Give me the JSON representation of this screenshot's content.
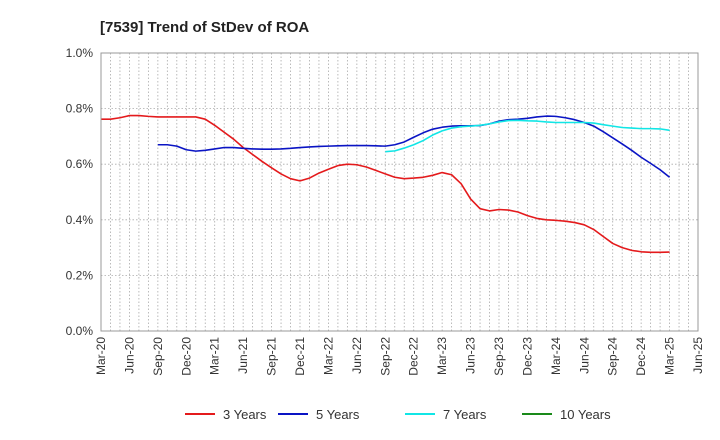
{
  "chart_data": {
    "type": "line",
    "title": "[7539]  Trend of StDev of ROA",
    "xlabel": "",
    "ylabel": "",
    "x_ticks": [
      "Mar-20",
      "Jun-20",
      "Sep-20",
      "Dec-20",
      "Mar-21",
      "Jun-21",
      "Sep-21",
      "Dec-21",
      "Mar-22",
      "Jun-22",
      "Sep-22",
      "Dec-22",
      "Mar-23",
      "Jun-23",
      "Sep-23",
      "Dec-23",
      "Mar-24",
      "Jun-24",
      "Sep-24",
      "Dec-24",
      "Mar-25",
      "Jun-25"
    ],
    "y_ticks": [
      "0.0%",
      "0.2%",
      "0.4%",
      "0.6%",
      "0.8%",
      "1.0%"
    ],
    "ylim": [
      0,
      1.0
    ],
    "y_unit": "%",
    "grid": true,
    "legend_position": "bottom",
    "series": [
      {
        "name": "3 Years",
        "color": "#e41a1c",
        "points": [
          [
            "Mar-20",
            0.762
          ],
          [
            "Apr-20",
            0.762
          ],
          [
            "May-20",
            0.767
          ],
          [
            "Jun-20",
            0.775
          ],
          [
            "Jul-20",
            0.775
          ],
          [
            "Aug-20",
            0.772
          ],
          [
            "Sep-20",
            0.77
          ],
          [
            "Oct-20",
            0.77
          ],
          [
            "Nov-20",
            0.77
          ],
          [
            "Dec-20",
            0.77
          ],
          [
            "Jan-21",
            0.77
          ],
          [
            "Feb-21",
            0.762
          ],
          [
            "Mar-21",
            0.74
          ],
          [
            "Apr-21",
            0.715
          ],
          [
            "May-21",
            0.69
          ],
          [
            "Jun-21",
            0.66
          ],
          [
            "Jul-21",
            0.635
          ],
          [
            "Aug-21",
            0.61
          ],
          [
            "Sep-21",
            0.587
          ],
          [
            "Oct-21",
            0.565
          ],
          [
            "Nov-21",
            0.548
          ],
          [
            "Dec-21",
            0.54
          ],
          [
            "Jan-22",
            0.55
          ],
          [
            "Feb-22",
            0.568
          ],
          [
            "Mar-22",
            0.582
          ],
          [
            "Apr-22",
            0.595
          ],
          [
            "May-22",
            0.6
          ],
          [
            "Jun-22",
            0.598
          ],
          [
            "Jul-22",
            0.59
          ],
          [
            "Aug-22",
            0.578
          ],
          [
            "Sep-22",
            0.565
          ],
          [
            "Oct-22",
            0.553
          ],
          [
            "Nov-22",
            0.548
          ],
          [
            "Dec-22",
            0.55
          ],
          [
            "Jan-23",
            0.553
          ],
          [
            "Feb-23",
            0.56
          ],
          [
            "Mar-23",
            0.57
          ],
          [
            "Apr-23",
            0.562
          ],
          [
            "May-23",
            0.53
          ],
          [
            "Jun-23",
            0.475
          ],
          [
            "Jul-23",
            0.44
          ],
          [
            "Aug-23",
            0.432
          ],
          [
            "Sep-23",
            0.437
          ],
          [
            "Oct-23",
            0.435
          ],
          [
            "Nov-23",
            0.428
          ],
          [
            "Dec-23",
            0.415
          ],
          [
            "Jan-24",
            0.405
          ],
          [
            "Feb-24",
            0.4
          ],
          [
            "Mar-24",
            0.398
          ],
          [
            "Apr-24",
            0.395
          ],
          [
            "May-24",
            0.39
          ],
          [
            "Jun-24",
            0.382
          ],
          [
            "Jul-24",
            0.365
          ],
          [
            "Aug-24",
            0.34
          ],
          [
            "Sep-24",
            0.315
          ],
          [
            "Oct-24",
            0.3
          ],
          [
            "Nov-24",
            0.29
          ],
          [
            "Dec-24",
            0.285
          ],
          [
            "Jan-25",
            0.283
          ],
          [
            "Feb-25",
            0.283
          ],
          [
            "Mar-25",
            0.284
          ]
        ]
      },
      {
        "name": "5 Years",
        "color": "#0a14c4",
        "points": [
          [
            "Sep-20",
            0.67
          ],
          [
            "Oct-20",
            0.67
          ],
          [
            "Nov-20",
            0.665
          ],
          [
            "Dec-20",
            0.652
          ],
          [
            "Jan-21",
            0.647
          ],
          [
            "Feb-21",
            0.65
          ],
          [
            "Mar-21",
            0.655
          ],
          [
            "Apr-21",
            0.66
          ],
          [
            "May-21",
            0.66
          ],
          [
            "Jun-21",
            0.657
          ],
          [
            "Jul-21",
            0.655
          ],
          [
            "Aug-21",
            0.654
          ],
          [
            "Sep-21",
            0.654
          ],
          [
            "Oct-21",
            0.655
          ],
          [
            "Nov-21",
            0.657
          ],
          [
            "Dec-21",
            0.66
          ],
          [
            "Jan-22",
            0.662
          ],
          [
            "Feb-22",
            0.664
          ],
          [
            "Mar-22",
            0.665
          ],
          [
            "Apr-22",
            0.666
          ],
          [
            "May-22",
            0.667
          ],
          [
            "Jun-22",
            0.667
          ],
          [
            "Jul-22",
            0.667
          ],
          [
            "Aug-22",
            0.666
          ],
          [
            "Sep-22",
            0.665
          ],
          [
            "Oct-22",
            0.67
          ],
          [
            "Nov-22",
            0.68
          ],
          [
            "Dec-22",
            0.697
          ],
          [
            "Jan-23",
            0.713
          ],
          [
            "Feb-23",
            0.726
          ],
          [
            "Mar-23",
            0.733
          ],
          [
            "Apr-23",
            0.737
          ],
          [
            "May-23",
            0.738
          ],
          [
            "Jun-23",
            0.738
          ],
          [
            "Jul-23",
            0.739
          ],
          [
            "Aug-23",
            0.745
          ],
          [
            "Sep-23",
            0.755
          ],
          [
            "Oct-23",
            0.76
          ],
          [
            "Nov-23",
            0.762
          ],
          [
            "Dec-23",
            0.765
          ],
          [
            "Jan-24",
            0.77
          ],
          [
            "Feb-24",
            0.773
          ],
          [
            "Mar-24",
            0.772
          ],
          [
            "Apr-24",
            0.767
          ],
          [
            "May-24",
            0.76
          ],
          [
            "Jun-24",
            0.75
          ],
          [
            "Jul-24",
            0.737
          ],
          [
            "Aug-24",
            0.717
          ],
          [
            "Sep-24",
            0.695
          ],
          [
            "Oct-24",
            0.673
          ],
          [
            "Nov-24",
            0.65
          ],
          [
            "Dec-24",
            0.625
          ],
          [
            "Jan-25",
            0.603
          ],
          [
            "Feb-25",
            0.58
          ],
          [
            "Mar-25",
            0.553
          ]
        ]
      },
      {
        "name": "7 Years",
        "color": "#11e6e6",
        "points": [
          [
            "Sep-22",
            0.645
          ],
          [
            "Oct-22",
            0.648
          ],
          [
            "Nov-22",
            0.658
          ],
          [
            "Dec-22",
            0.67
          ],
          [
            "Jan-23",
            0.685
          ],
          [
            "Feb-23",
            0.705
          ],
          [
            "Mar-23",
            0.72
          ],
          [
            "Apr-23",
            0.73
          ],
          [
            "May-23",
            0.735
          ],
          [
            "Jun-23",
            0.737
          ],
          [
            "Jul-23",
            0.74
          ],
          [
            "Aug-23",
            0.745
          ],
          [
            "Sep-23",
            0.752
          ],
          [
            "Oct-23",
            0.757
          ],
          [
            "Nov-23",
            0.758
          ],
          [
            "Dec-23",
            0.756
          ],
          [
            "Jan-24",
            0.755
          ],
          [
            "Feb-24",
            0.752
          ],
          [
            "Mar-24",
            0.75
          ],
          [
            "Apr-24",
            0.75
          ],
          [
            "May-24",
            0.75
          ],
          [
            "Jun-24",
            0.75
          ],
          [
            "Jul-24",
            0.748
          ],
          [
            "Aug-24",
            0.742
          ],
          [
            "Sep-24",
            0.737
          ],
          [
            "Oct-24",
            0.732
          ],
          [
            "Nov-24",
            0.73
          ],
          [
            "Dec-24",
            0.728
          ],
          [
            "Jan-25",
            0.728
          ],
          [
            "Feb-25",
            0.727
          ],
          [
            "Mar-25",
            0.722
          ]
        ]
      },
      {
        "name": "10 Years",
        "color": "#1a8a1a",
        "points": []
      }
    ]
  }
}
